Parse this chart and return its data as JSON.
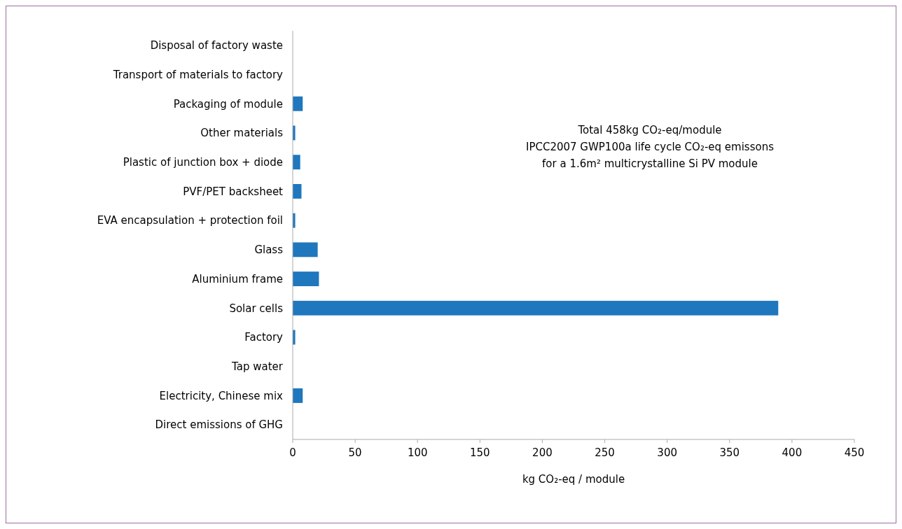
{
  "chart_data": {
    "type": "bar",
    "orientation": "horizontal",
    "xlabel": "kg CO₂-eq / module",
    "categories": [
      "Disposal of factory waste",
      "Transport of materials to factory",
      "Packaging of module",
      "Other materials",
      "Plastic of junction box + diode",
      "PVF/PET backsheet",
      "EVA encapsulation + protection foil",
      "Glass",
      "Aluminium frame",
      "Solar cells",
      "Factory",
      "Tap water",
      "Electricity, Chinese mix",
      "Direct emissions of GHG"
    ],
    "values": [
      0,
      0,
      8,
      2,
      6,
      7,
      2,
      20,
      21,
      389,
      2,
      0,
      8,
      0
    ],
    "color": "#1f77be",
    "xlim": [
      0,
      450
    ],
    "xticks": [
      0,
      50,
      100,
      150,
      200,
      250,
      300,
      350,
      400,
      450
    ],
    "grid": false,
    "annotations": [
      "Total 458kg CO₂-eq/module",
      "IPCC2007 GWP100a life cycle CO₂-eq emissons",
      "for a 1.6m² multicrystalline Si PV module"
    ]
  }
}
